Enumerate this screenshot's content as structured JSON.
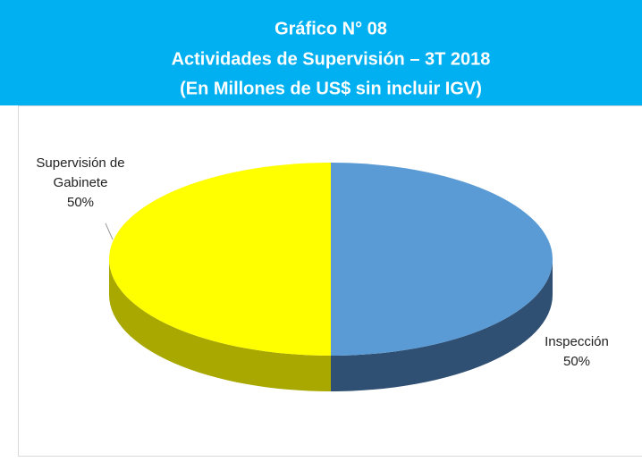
{
  "chart_data": {
    "type": "pie",
    "title": "Gráfico N° 08",
    "subtitle": [
      "Actividades de Supervisión – 3T 2018",
      "(En Millones de US$  sin incluir IGV)"
    ],
    "categories": [
      "Inspección",
      "Supervisión de Gabinete"
    ],
    "values": [
      50,
      50
    ],
    "value_labels": [
      "50%",
      "50%"
    ],
    "colors": [
      "#5b9bd5",
      "#ffff00"
    ],
    "side_colors": [
      "#2f4f73",
      "#a8a800"
    ]
  }
}
